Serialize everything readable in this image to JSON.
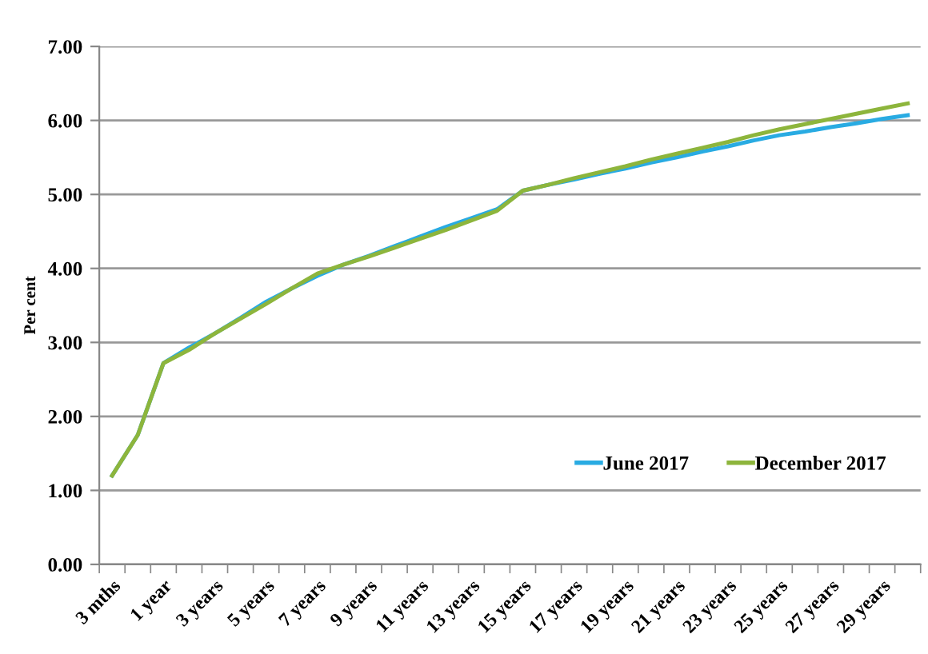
{
  "chart_data": {
    "type": "line",
    "ylabel": "Per cent",
    "categories": [
      "3 mths",
      null,
      "1 year",
      null,
      "3 years",
      null,
      "5 years",
      null,
      "7 years",
      null,
      "9 years",
      null,
      "11 years",
      null,
      "13 years",
      null,
      "15 years",
      null,
      "17 years",
      null,
      "19 years",
      null,
      "21 years",
      null,
      "23 years",
      null,
      "25 years",
      null,
      "27 years",
      null,
      "29 years",
      null
    ],
    "series": [
      {
        "name": "June 2017",
        "color": "#29abe2",
        "values": [
          1.2,
          1.75,
          2.72,
          2.93,
          3.12,
          3.33,
          3.55,
          3.73,
          3.9,
          4.05,
          4.17,
          4.3,
          4.43,
          4.56,
          4.68,
          4.8,
          5.05,
          5.13,
          5.2,
          5.28,
          5.35,
          5.43,
          5.5,
          5.58,
          5.65,
          5.73,
          5.8,
          5.85,
          5.91,
          5.96,
          6.02,
          6.07
        ]
      },
      {
        "name": "December 2017",
        "color": "#8db53c",
        "values": [
          1.2,
          1.75,
          2.72,
          2.9,
          3.12,
          3.32,
          3.52,
          3.73,
          3.93,
          4.05,
          4.16,
          4.28,
          4.4,
          4.52,
          4.65,
          4.78,
          5.05,
          5.13,
          5.22,
          5.3,
          5.38,
          5.47,
          5.55,
          5.63,
          5.71,
          5.8,
          5.88,
          5.95,
          6.02,
          6.09,
          6.16,
          6.23
        ]
      }
    ],
    "ylim": [
      0,
      7
    ],
    "yticks": [
      {
        "value": 0,
        "label": "0.00"
      },
      {
        "value": 1,
        "label": "1.00"
      },
      {
        "value": 2,
        "label": "2.00"
      },
      {
        "value": 3,
        "label": "3.00"
      },
      {
        "value": 4,
        "label": "4.00"
      },
      {
        "value": 5,
        "label": "5.00"
      },
      {
        "value": 6,
        "label": "6.00"
      },
      {
        "value": 7,
        "label": "7.00"
      }
    ],
    "grid": "y",
    "legend": "bottom right",
    "marker": "none",
    "line_style": "solid"
  }
}
